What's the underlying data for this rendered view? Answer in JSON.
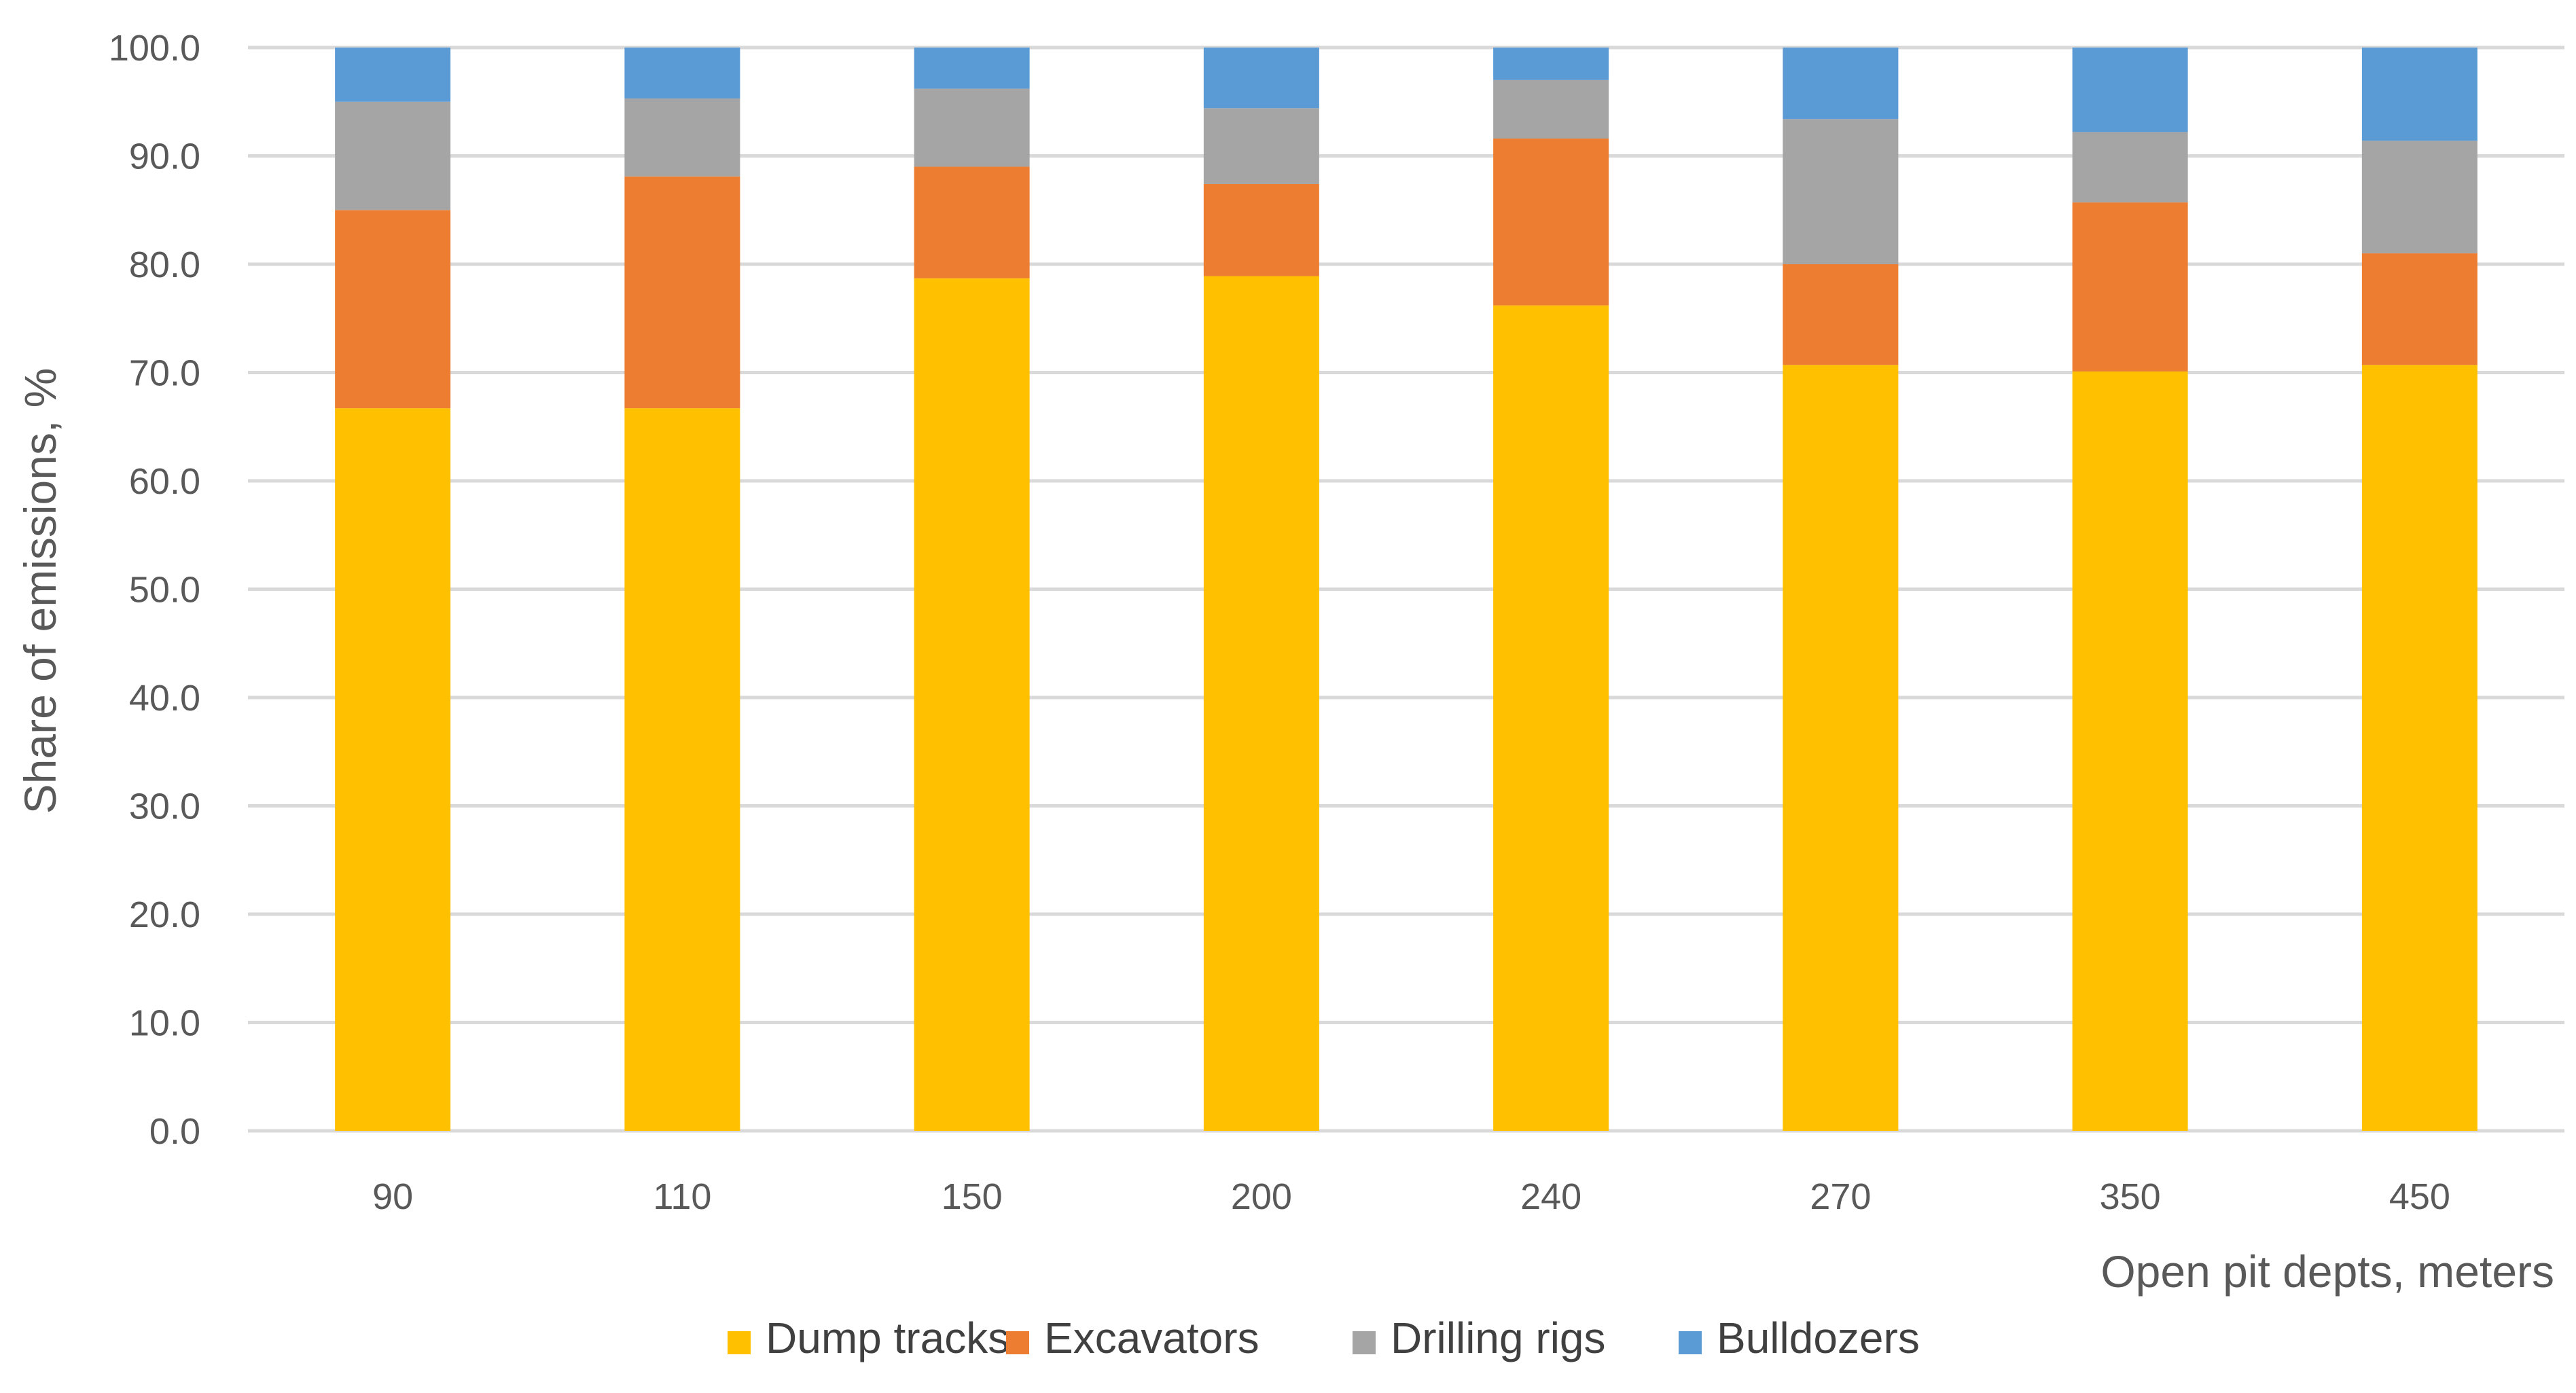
{
  "chart_data": {
    "type": "bar",
    "stacked": true,
    "title": "",
    "xlabel": "Open pit depts, meters",
    "ylabel": "Share of emissions, %",
    "ylim": [
      0,
      100
    ],
    "ytick_step": 10,
    "grid": true,
    "legend_position": "bottom",
    "categories": [
      "90",
      "110",
      "150",
      "200",
      "240",
      "270",
      "350",
      "450"
    ],
    "series": [
      {
        "name": "Dump tracks",
        "color": "#FFC000",
        "values": [
          66.7,
          66.7,
          78.7,
          78.9,
          76.2,
          70.7,
          70.1,
          70.7
        ]
      },
      {
        "name": "Excavators",
        "color": "#ED7D31",
        "values": [
          18.3,
          21.4,
          10.3,
          8.5,
          15.4,
          9.3,
          15.6,
          10.3
        ]
      },
      {
        "name": "Drilling rigs",
        "color": "#A5A5A5",
        "values": [
          10.0,
          7.2,
          7.2,
          7.0,
          5.4,
          13.4,
          6.5,
          10.4
        ]
      },
      {
        "name": "Bulldozers",
        "color": "#5B9BD5",
        "values": [
          5.0,
          4.7,
          3.8,
          5.6,
          3.0,
          6.6,
          7.8,
          8.6
        ]
      }
    ]
  }
}
